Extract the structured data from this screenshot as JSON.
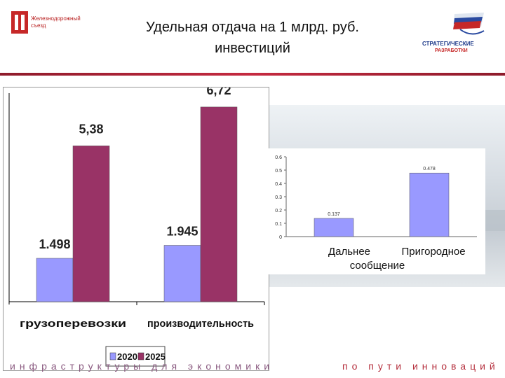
{
  "header": {
    "title_line1": "Удельная отдача на 1 млрд. руб.",
    "title_line2": "инвестиций",
    "logo_left_line1": "Железнодорожный",
    "logo_left_line2": "съезд",
    "logo_right_line1": "СТРАТЕГИЧЕСКИЕ",
    "logo_right_line2": "РАЗРАБОТКИ"
  },
  "footer": {
    "left": "инфраструктуры для экономики",
    "right": "по пути инноваций"
  },
  "colors": {
    "series_2020": "#9999ff",
    "series_2025": "#993366",
    "small_bar": "#9999ff",
    "divider": "#b5303e"
  },
  "chart_data": [
    {
      "type": "bar",
      "categories": [
        "грузоперевозки",
        "производительность"
      ],
      "series": [
        {
          "name": "2020",
          "values": [
            1.498,
            1.945
          ],
          "labels": [
            "1.498",
            "1.945"
          ]
        },
        {
          "name": "2025",
          "values": [
            5.38,
            6.72
          ],
          "labels": [
            "5,38",
            "6,72"
          ]
        }
      ],
      "ylim": [
        0,
        7.2
      ],
      "legend": "bottom",
      "grid": false
    },
    {
      "type": "bar",
      "categories": [
        "Дальнее",
        "Пригородное"
      ],
      "category_caption": "сообщение",
      "values": [
        0.137,
        0.478
      ],
      "labels": [
        "0.137",
        "0.478"
      ],
      "yticks": [
        "0",
        "0.1",
        "0.2",
        "0.3",
        "0.4",
        "0.5",
        "0.6"
      ],
      "ylim": [
        0,
        0.6
      ],
      "grid": false
    }
  ]
}
